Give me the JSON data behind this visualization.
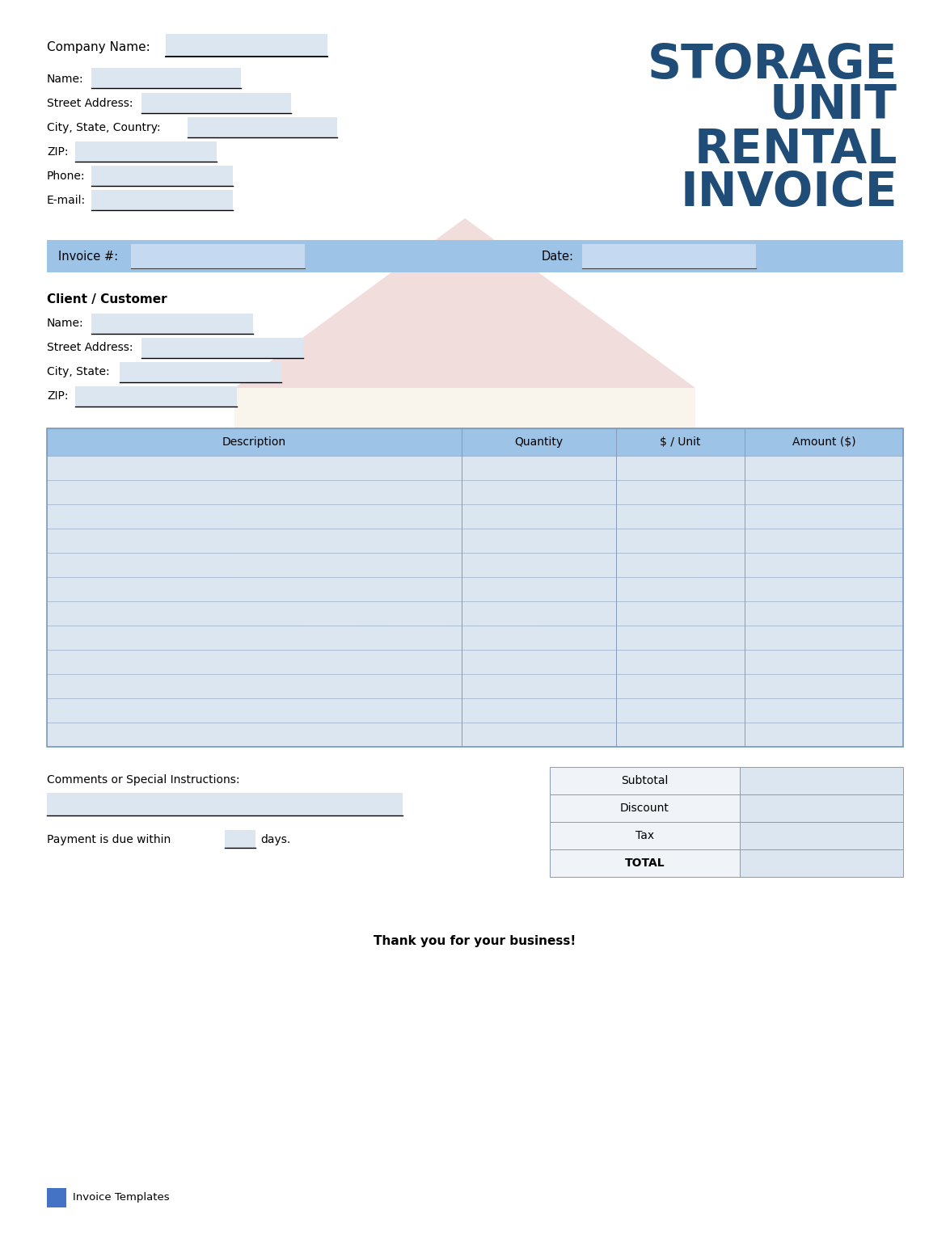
{
  "bg_color": "#ffffff",
  "title_lines": [
    "STORAGE",
    "UNIT",
    "RENTAL",
    "INVOICE"
  ],
  "title_color": "#1f4d78",
  "input_fill": "#dce6f1",
  "header_blue": "#9dc3e6",
  "table_row_fill": "#dce6f1",
  "invoice_bar_color": "#9dc3e6",
  "light_blue_fill": "#c5d9f1",
  "watermark_red": "#d9a09a",
  "watermark_yellow": "#f2e8d0",
  "sum_label_fill": "#e8eef5",
  "footer_icon_color": "#4472c4"
}
